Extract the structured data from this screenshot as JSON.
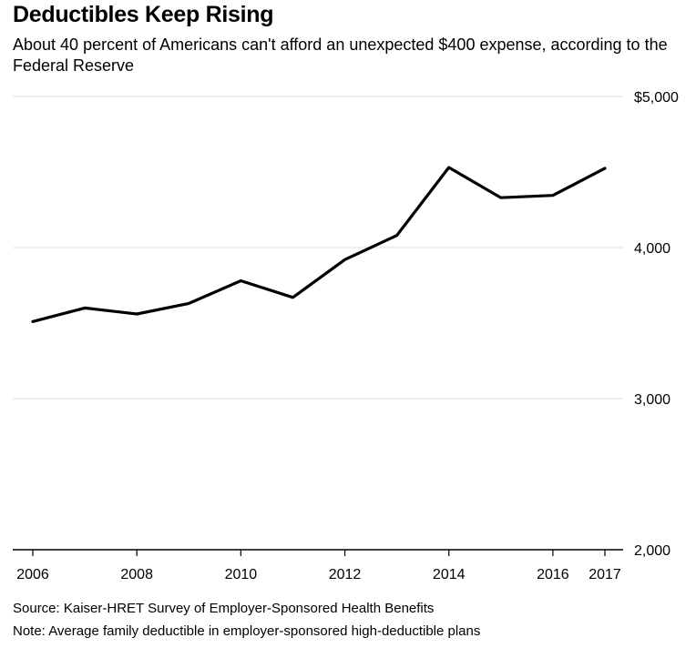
{
  "chart_data": {
    "type": "line",
    "title": "Deductibles Keep Rising",
    "subtitle": "About 40 percent of Americans can't afford an unexpected $400 expense, according to the Federal Reserve",
    "xlabel": "",
    "ylabel": "",
    "x": [
      2006,
      2007,
      2008,
      2009,
      2010,
      2011,
      2012,
      2013,
      2014,
      2015,
      2016,
      2017
    ],
    "series": [
      {
        "values": [
          3510,
          3600,
          3560,
          3630,
          3780,
          3670,
          3920,
          4080,
          4530,
          4330,
          4345,
          4525
        ]
      }
    ],
    "x_ticks": [
      2006,
      2008,
      2010,
      2012,
      2014,
      2016,
      2017
    ],
    "x_tick_labels": [
      "2006",
      "2008",
      "2010",
      "2012",
      "2014",
      "2016",
      "2017"
    ],
    "y_ticks": [
      2000,
      3000,
      4000,
      5000
    ],
    "y_tick_labels": [
      "2,000",
      "3,000",
      "4,000",
      "$5,000"
    ],
    "ylim": [
      2000,
      5000
    ],
    "xlim": [
      2006,
      2017
    ],
    "grid": true,
    "y_axis_side": "right",
    "line_color": "#000000",
    "grid_color": "#dddddd"
  },
  "footer": {
    "source": "Source: Kaiser-HRET Survey of Employer-Sponsored Health Benefits",
    "note": "Note: Average family deductible in employer-sponsored high-deductible plans"
  }
}
